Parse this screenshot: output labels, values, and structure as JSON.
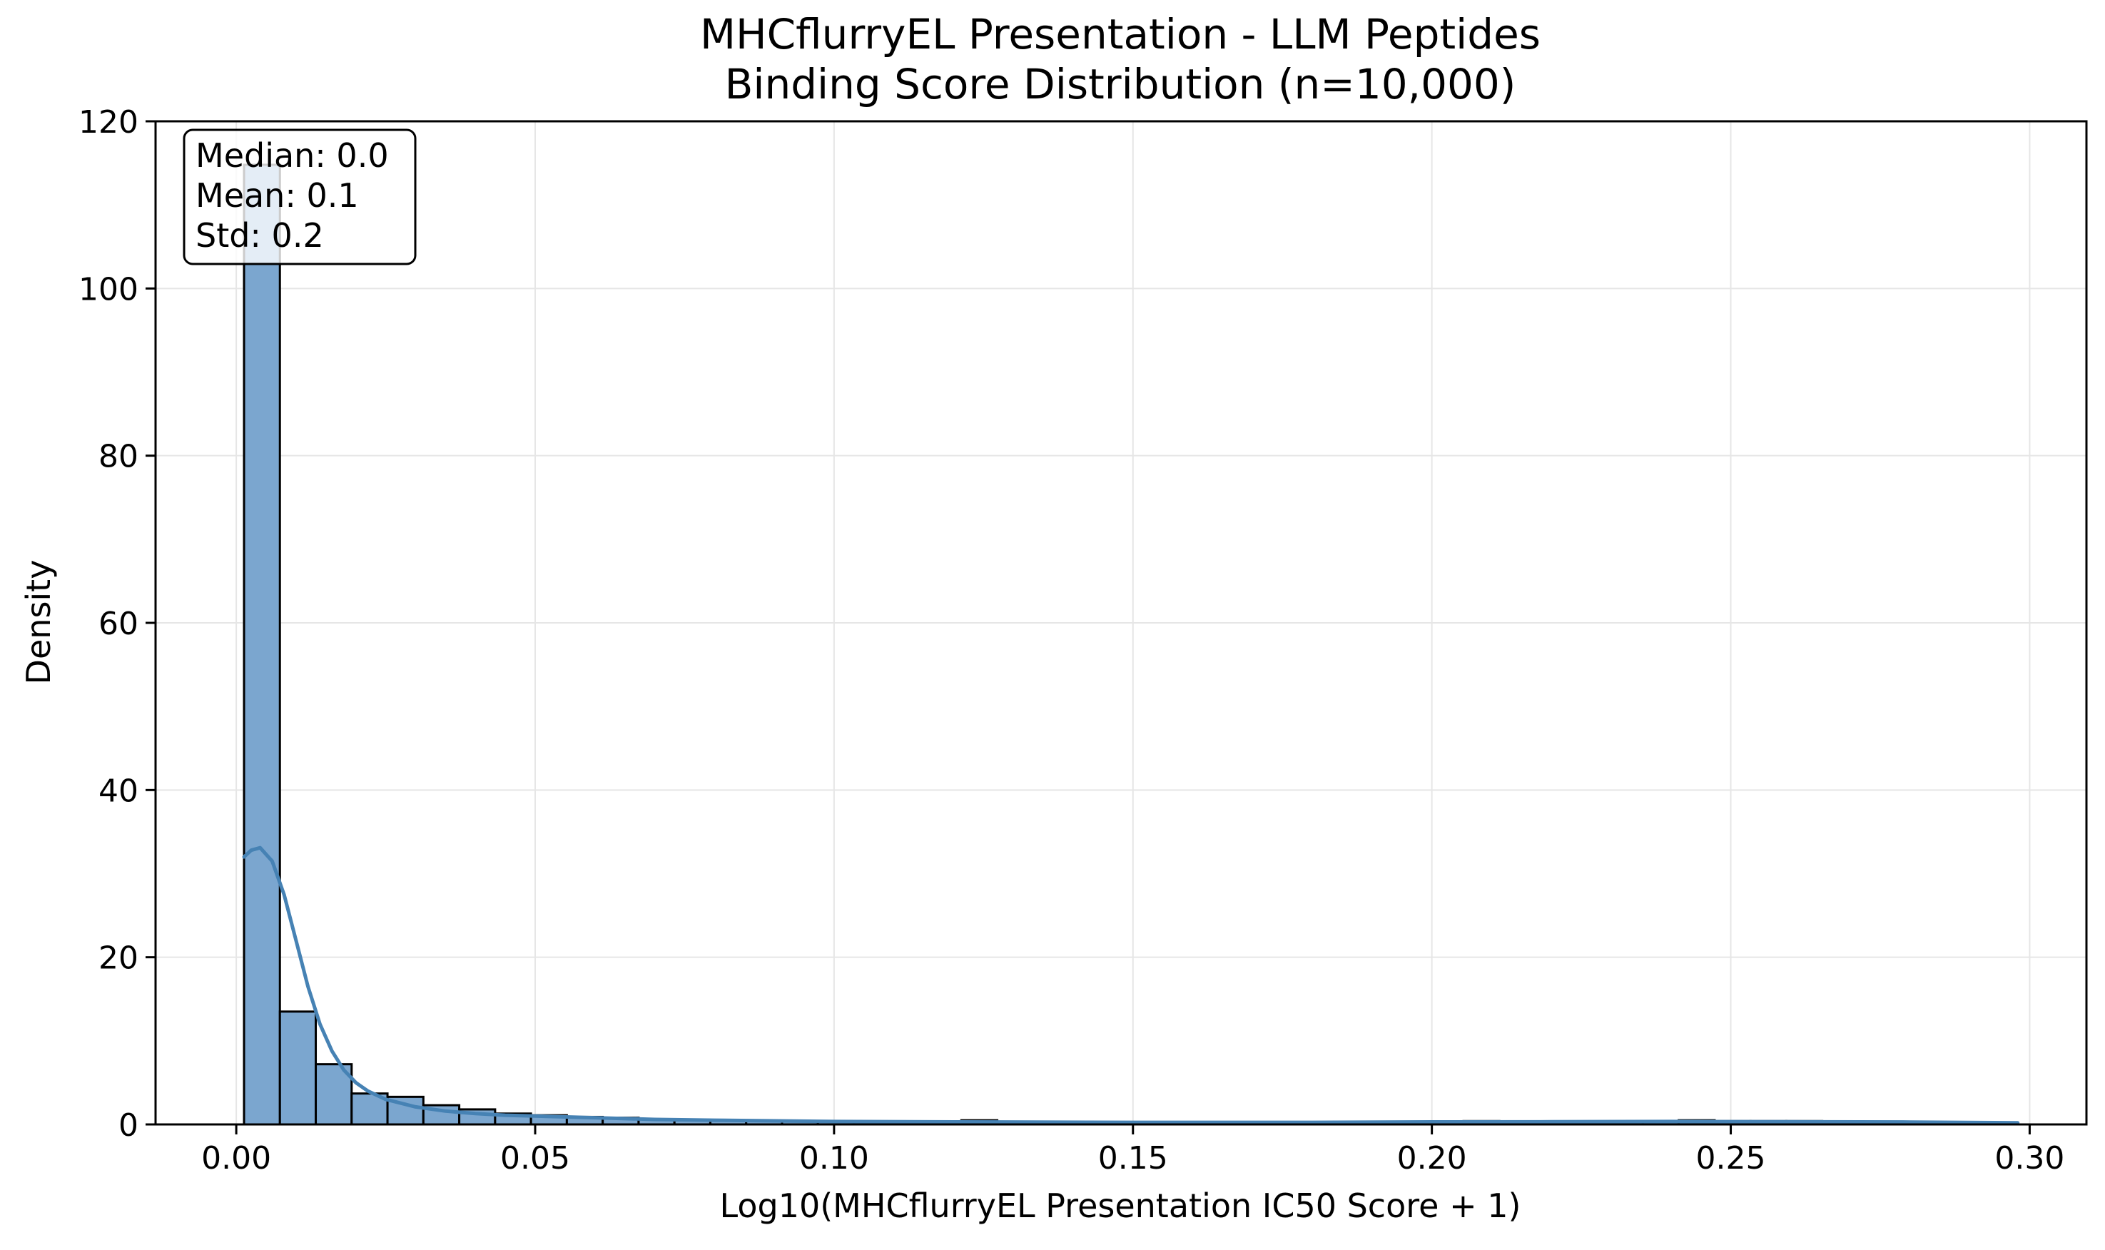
{
  "chart_data": {
    "type": "bar",
    "title": "MHCflurryEL Presentation - LLM Peptides",
    "subtitle": "Binding Score Distribution (n=10,000)",
    "xlabel": "Log10(MHCflurryEL Presentation IC50 Score + 1)",
    "ylabel": "Density",
    "xlim": [
      -0.0135,
      0.3095
    ],
    "ylim": [
      0,
      120
    ],
    "xticks": [
      0.0,
      0.05,
      0.1,
      0.15,
      0.2,
      0.25,
      0.3
    ],
    "xtick_labels": [
      "0.00",
      "0.05",
      "0.10",
      "0.15",
      "0.20",
      "0.25",
      "0.30"
    ],
    "yticks": [
      0,
      20,
      40,
      60,
      80,
      100,
      120
    ],
    "ytick_labels": [
      "0",
      "20",
      "40",
      "60",
      "80",
      "100",
      "120"
    ],
    "grid": true,
    "bar_color": "#7ba6cf",
    "bar_edge_color": "#000000",
    "kde_color": "#4682b4",
    "bin_edges": [
      0.0013,
      0.0073,
      0.0133,
      0.0193,
      0.0253,
      0.0313,
      0.0373,
      0.0433,
      0.0493,
      0.0553,
      0.0613,
      0.0673,
      0.0733,
      0.0793,
      0.0853,
      0.0913,
      0.0973,
      0.1033,
      0.1093,
      0.1153,
      0.1213,
      0.1273,
      0.1333,
      0.1393,
      0.1453,
      0.1513,
      0.1573,
      0.1633,
      0.1693,
      0.1753,
      0.1813,
      0.1873,
      0.1933,
      0.1993,
      0.2053,
      0.2113,
      0.2173,
      0.2233,
      0.2293,
      0.2353,
      0.2413,
      0.2473,
      0.2533,
      0.2593,
      0.2653,
      0.2713,
      0.2773,
      0.2833,
      0.2893,
      0.2953
    ],
    "density": [
      114.8,
      13.5,
      7.2,
      3.7,
      3.3,
      2.3,
      1.8,
      1.3,
      1.1,
      0.9,
      0.8,
      0.6,
      0.5,
      0.45,
      0.4,
      0.35,
      0.3,
      0.3,
      0.3,
      0.3,
      0.5,
      0.25,
      0.2,
      0.2,
      0.2,
      0.2,
      0.2,
      0.2,
      0.2,
      0.2,
      0.2,
      0.2,
      0.2,
      0.2,
      0.4,
      0.3,
      0.3,
      0.3,
      0.3,
      0.3,
      0.5,
      0.4,
      0.4,
      0.4,
      0.3,
      0.3,
      0.2,
      0.2,
      0.1
    ],
    "kde": {
      "x": [
        0.0013,
        0.0025,
        0.004,
        0.006,
        0.008,
        0.01,
        0.012,
        0.014,
        0.016,
        0.018,
        0.02,
        0.022,
        0.025,
        0.03,
        0.035,
        0.04,
        0.045,
        0.05,
        0.06,
        0.07,
        0.08,
        0.1,
        0.12,
        0.15,
        0.18,
        0.2,
        0.22,
        0.24,
        0.26,
        0.28,
        0.298
      ],
      "y": [
        32.0,
        32.8,
        33.1,
        31.5,
        27.5,
        22.0,
        16.5,
        12.0,
        8.8,
        6.5,
        5.0,
        4.0,
        3.0,
        2.1,
        1.6,
        1.3,
        1.1,
        1.0,
        0.8,
        0.6,
        0.5,
        0.35,
        0.3,
        0.25,
        0.25,
        0.3,
        0.32,
        0.35,
        0.32,
        0.28,
        0.2
      ]
    },
    "stats_box": {
      "lines": [
        "Median: 0.0",
        "Mean: 0.1",
        "Std: 0.2"
      ],
      "placement": "top-left"
    }
  }
}
